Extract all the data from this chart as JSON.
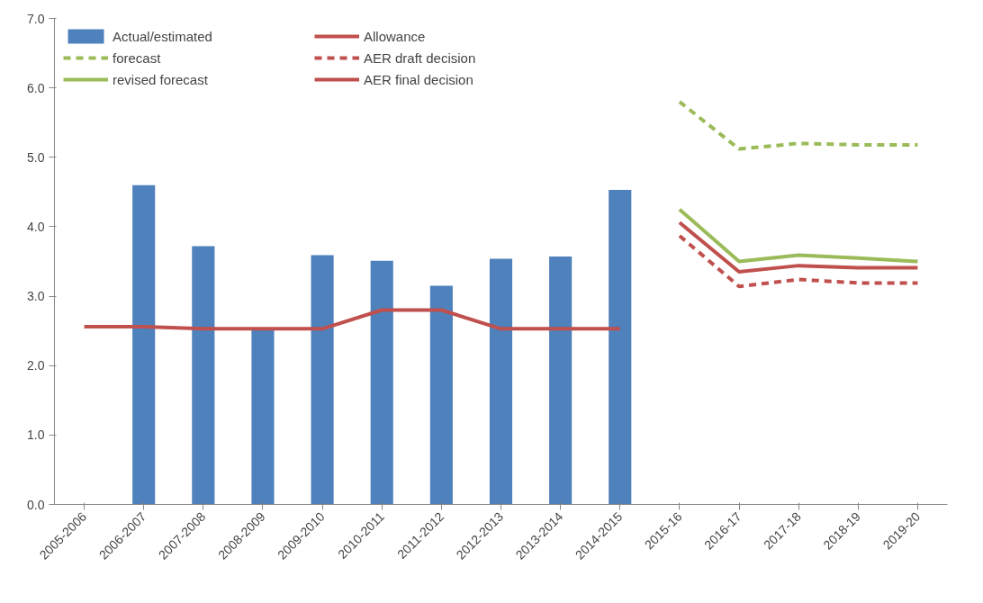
{
  "chart_data": {
    "type": "bar",
    "categories": [
      "2005-2006",
      "2006-2007",
      "2007-2008",
      "2008-2009",
      "2009-2010",
      "2010-2011",
      "2011-2012",
      "2012-2013",
      "2013-2014",
      "2014-2015",
      "2015-16",
      "2016-17",
      "2017-18",
      "2018-19",
      "2019-20"
    ],
    "series": [
      {
        "name": "Actual/estimated",
        "color": "#4f81bd",
        "values": [
          null,
          4.6,
          3.72,
          2.53,
          3.59,
          3.51,
          3.15,
          3.54,
          3.57,
          4.53,
          null,
          null,
          null,
          null,
          null
        ]
      },
      {
        "type": "line",
        "name": "forecast",
        "color": "#9bbb59",
        "line_style": "dashed",
        "values": [
          null,
          null,
          null,
          null,
          null,
          null,
          null,
          null,
          null,
          null,
          5.8,
          5.12,
          5.2,
          5.18,
          5.18
        ]
      },
      {
        "type": "line",
        "name": "revised forecast",
        "color": "#9bbb59",
        "line_style": "solid",
        "values": [
          null,
          null,
          null,
          null,
          null,
          null,
          null,
          null,
          null,
          null,
          4.25,
          3.5,
          3.59,
          3.55,
          3.5
        ]
      },
      {
        "type": "line",
        "name": "Allowance",
        "color": "#c0504d",
        "line_style": "solid",
        "values": [
          2.56,
          2.56,
          2.53,
          2.53,
          2.53,
          2.8,
          2.8,
          2.53,
          2.53,
          2.53,
          null,
          null,
          null,
          null,
          null
        ]
      },
      {
        "type": "line",
        "name": "AER draft decision",
        "color": "#c0504d",
        "line_style": "dashed",
        "values": [
          null,
          null,
          null,
          null,
          null,
          null,
          null,
          null,
          null,
          null,
          3.87,
          3.14,
          3.24,
          3.19,
          3.19
        ]
      },
      {
        "type": "line",
        "name": "AER final decision",
        "color": "#c0504d",
        "line_style": "solid",
        "values": [
          null,
          null,
          null,
          null,
          null,
          null,
          null,
          null,
          null,
          null,
          4.06,
          3.35,
          3.44,
          3.41,
          3.41
        ]
      }
    ],
    "ylim": [
      0,
      7
    ],
    "yticks": [
      {
        "value": 0,
        "label": "0.0"
      },
      {
        "value": 1,
        "label": "1.0"
      },
      {
        "value": 2,
        "label": "2.0"
      },
      {
        "value": 3,
        "label": "3.0"
      },
      {
        "value": 4,
        "label": "4.0"
      },
      {
        "value": 5,
        "label": "5.0"
      },
      {
        "value": 6,
        "label": "6.0"
      },
      {
        "value": 7,
        "label": "7.0"
      }
    ],
    "grid": false,
    "legend": "top left"
  }
}
